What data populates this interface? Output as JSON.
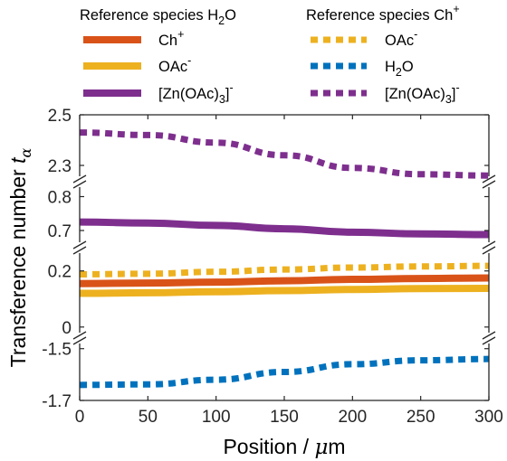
{
  "chart_data": {
    "type": "line",
    "xlabel": {
      "text": "Position / ",
      "symbol": "μ",
      "unit": "m"
    },
    "ylabel": {
      "text": "Transference number ",
      "symbol": "t",
      "subscript": "α"
    },
    "xlim": [
      0,
      300
    ],
    "x_ticks": [
      "0",
      "50",
      "100",
      "150",
      "200",
      "250",
      "300"
    ],
    "x_tick_values": [
      0,
      50,
      100,
      150,
      200,
      250,
      300
    ],
    "y_ticks": [
      {
        "label": "2.5",
        "value": 2.5
      },
      {
        "label": "2.3",
        "value": 2.3
      },
      {
        "label": "0.8",
        "value": 0.8
      },
      {
        "label": "0.7",
        "value": 0.7
      },
      {
        "label": "0.2",
        "value": 0.2
      },
      {
        "label": "0",
        "value": 0
      },
      {
        "label": "-1.5",
        "value": -1.5
      },
      {
        "label": "-1.7",
        "value": -1.7
      }
    ],
    "broken_axis": true,
    "segments": [
      {
        "ylim": [
          2.25,
          2.5
        ]
      },
      {
        "ylim": [
          0.66,
          0.82
        ]
      },
      {
        "ylim": [
          -0.02,
          0.27
        ]
      },
      {
        "ylim": [
          -1.7,
          -1.48
        ]
      }
    ],
    "legend": {
      "placement": "top",
      "groups": [
        {
          "title": {
            "text": "Reference species H",
            "sub": "2",
            "after": "O"
          }
        },
        {
          "title": {
            "text": "Reference species Ch",
            "sup": "+"
          }
        }
      ]
    },
    "series": [
      {
        "name": {
          "text": "Ch",
          "sup": "+"
        },
        "group": 0,
        "color": "#d95319",
        "style": "solid",
        "x": [
          0,
          50,
          100,
          150,
          200,
          250,
          300
        ],
        "values": [
          0.155,
          0.157,
          0.16,
          0.165,
          0.17,
          0.173,
          0.175
        ]
      },
      {
        "name": {
          "text": "OAc",
          "sup": "-"
        },
        "group": 0,
        "color": "#edb120",
        "style": "solid",
        "x": [
          0,
          50,
          100,
          150,
          200,
          250,
          300
        ],
        "values": [
          0.12,
          0.122,
          0.126,
          0.13,
          0.134,
          0.137,
          0.138
        ]
      },
      {
        "name": {
          "text": "[Zn(OAc)",
          "sub": "3",
          "after": "]",
          "sup": "-"
        },
        "group": 0,
        "color": "#7e2f8e",
        "style": "solid",
        "x": [
          0,
          50,
          100,
          150,
          200,
          250,
          300
        ],
        "values": [
          0.725,
          0.722,
          0.715,
          0.705,
          0.695,
          0.69,
          0.688
        ]
      },
      {
        "name": {
          "text": "OAc",
          "sup": "-"
        },
        "group": 1,
        "color": "#edb120",
        "style": "dotted",
        "x": [
          0,
          50,
          100,
          150,
          200,
          250,
          300
        ],
        "values": [
          0.188,
          0.19,
          0.197,
          0.205,
          0.212,
          0.216,
          0.218
        ]
      },
      {
        "name": {
          "text": "H",
          "sub": "2",
          "after": "O"
        },
        "group": 1,
        "color": "#0072bd",
        "style": "dotted",
        "x": [
          0,
          50,
          100,
          150,
          200,
          250,
          300
        ],
        "values": [
          -1.64,
          -1.638,
          -1.62,
          -1.59,
          -1.56,
          -1.545,
          -1.54
        ]
      },
      {
        "name": {
          "text": "[Zn(OAc)",
          "sub": "3",
          "after": "]",
          "sup": "-"
        },
        "group": 1,
        "color": "#7e2f8e",
        "style": "dotted",
        "x": [
          0,
          50,
          100,
          150,
          200,
          250,
          300
        ],
        "values": [
          2.43,
          2.42,
          2.39,
          2.34,
          2.29,
          2.265,
          2.26
        ]
      }
    ]
  }
}
